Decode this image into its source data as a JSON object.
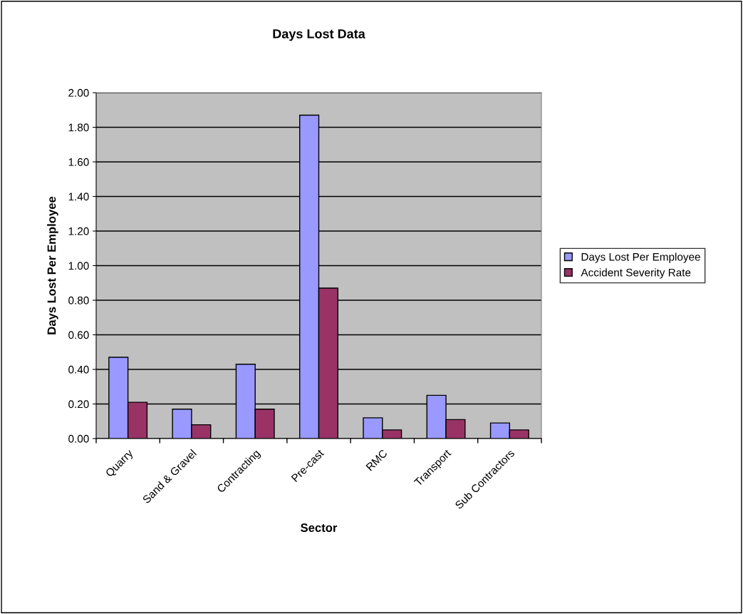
{
  "chart_data": {
    "type": "bar",
    "title": "Days Lost Data",
    "xlabel": "Sector",
    "ylabel": "Days Lost Per Employee",
    "categories": [
      "Quarry",
      "Sand & Gravel",
      "Contracting",
      "Pre-cast",
      "RMC",
      "Transport",
      "Sub Contractors"
    ],
    "series": [
      {
        "name": "Days Lost Per Employee",
        "color": "#9999ff",
        "values": [
          0.47,
          0.17,
          0.43,
          1.87,
          0.12,
          0.25,
          0.09
        ]
      },
      {
        "name": "Accident Severity Rate",
        "color": "#993366",
        "values": [
          0.21,
          0.08,
          0.17,
          0.87,
          0.05,
          0.11,
          0.05
        ]
      }
    ],
    "ylim": [
      0,
      2.0
    ],
    "yticks": [
      {
        "value": 0,
        "label": "0.00"
      },
      {
        "value": 0.2,
        "label": "0.20"
      },
      {
        "value": 0.4,
        "label": "0.40"
      },
      {
        "value": 0.6,
        "label": "0.60"
      },
      {
        "value": 0.8,
        "label": "0.80"
      },
      {
        "value": 1.0,
        "label": "1.00"
      },
      {
        "value": 1.2,
        "label": "1.20"
      },
      {
        "value": 1.4,
        "label": "1.40"
      },
      {
        "value": 1.6,
        "label": "1.60"
      },
      {
        "value": 1.8,
        "label": "1.80"
      },
      {
        "value": 2.0,
        "label": "2.00"
      }
    ],
    "grid": "y",
    "legend": "right"
  }
}
